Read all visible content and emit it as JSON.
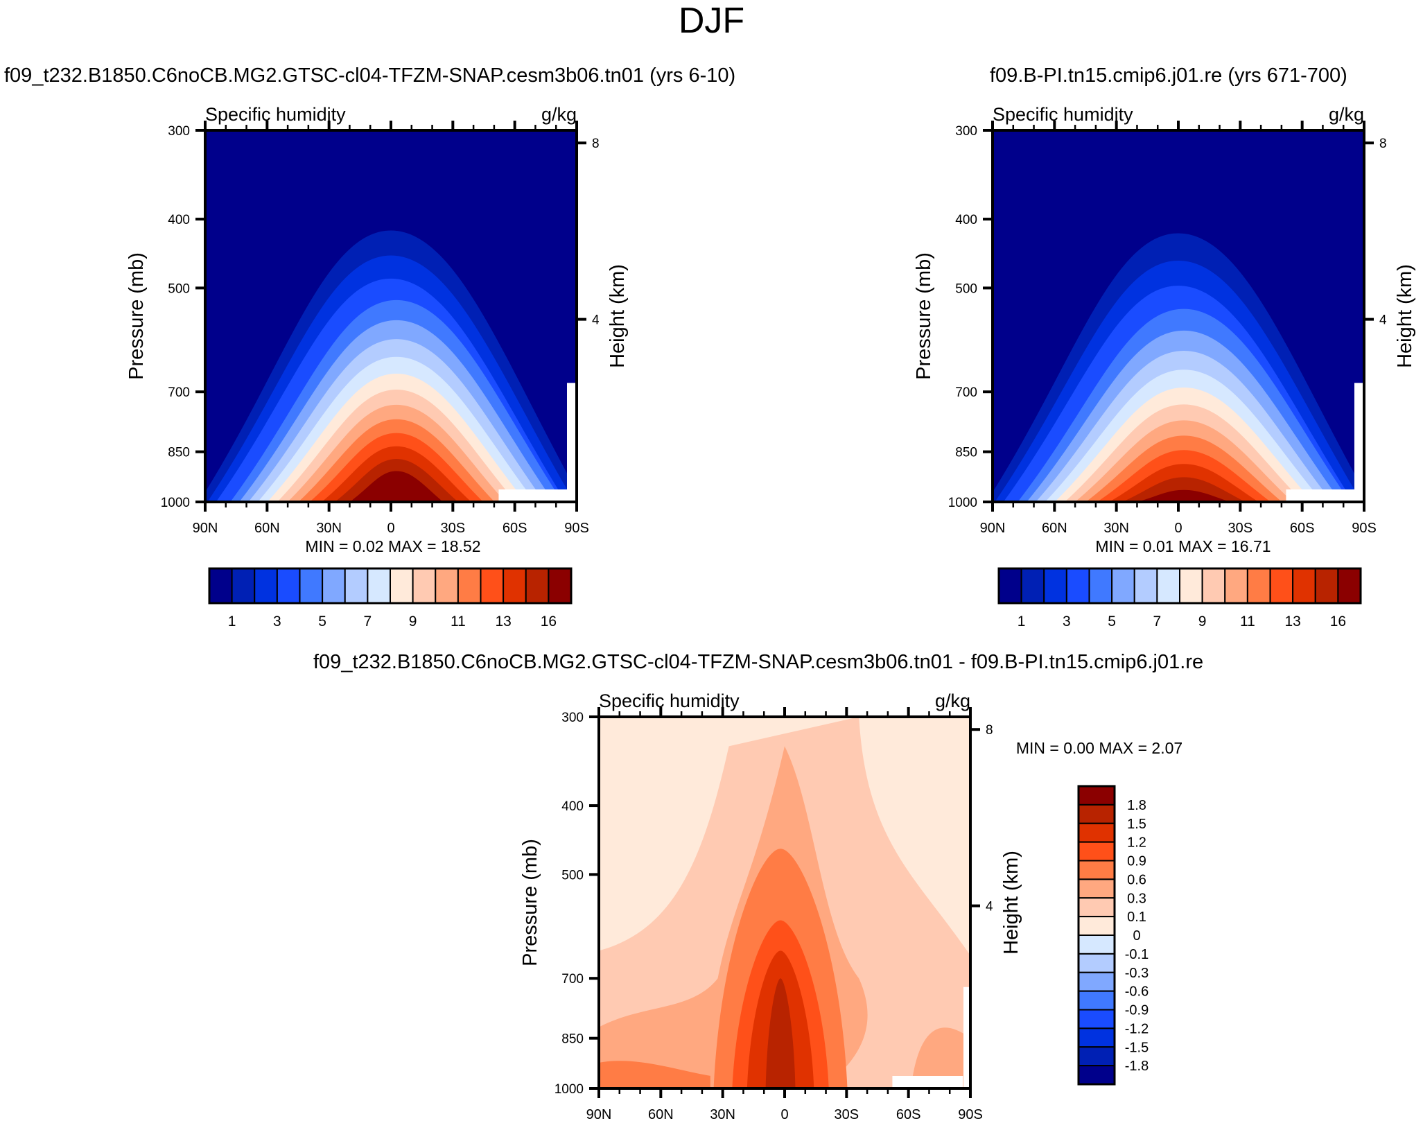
{
  "figure": {
    "title": "DJF",
    "diff_title": "f09_t232.B1850.C6noCB.MG2.GTSC-cl04-TFZM-SNAP.cesm3b06.tn01 - f09.B-PI.tn15.cmip6.j01.re"
  },
  "chart_data": [
    {
      "type": "heatmap",
      "panel": "test",
      "title": "f09_t232.B1850.C6noCB.MG2.GTSC-cl04-TFZM-SNAP.cesm3b06.tn01 (yrs 6-10)",
      "left_string": "Specific humidity",
      "right_string": "g/kg",
      "xlabel": "",
      "ylabel": "Pressure (mb)",
      "y2label": "Height (km)",
      "x_ticks": [
        "90N",
        "60N",
        "30N",
        "0",
        "30S",
        "60S",
        "90S"
      ],
      "x_range": [
        90,
        -90
      ],
      "y_ticks": [
        300,
        400,
        500,
        700,
        850,
        1000
      ],
      "y_range": [
        300,
        1000
      ],
      "y2_ticks": [
        8,
        4
      ],
      "stats": "MIN =   0.02  MAX =  18.52",
      "min": 0.02,
      "max": 18.52,
      "peak_lat": 0,
      "levels": [
        1,
        2,
        3,
        4,
        5,
        6,
        7,
        8,
        9,
        10,
        11,
        12,
        13,
        14,
        16
      ],
      "colorbar_labels": [
        "1",
        "3",
        "5",
        "7",
        "9",
        "11",
        "13",
        "16"
      ],
      "colors": [
        "#00008b",
        "#0020b4",
        "#0032e0",
        "#1a4cff",
        "#4079ff",
        "#80a8ff",
        "#b3ccff",
        "#d6e8ff",
        "#ffeada",
        "#ffcab2",
        "#ffa880",
        "#ff7c45",
        "#ff5019",
        "#e03200",
        "#b82300",
        "#8b0000"
      ]
    },
    {
      "type": "heatmap",
      "panel": "control",
      "title": "f09.B-PI.tn15.cmip6.j01.re (yrs 671-700)",
      "left_string": "Specific humidity",
      "right_string": "g/kg",
      "xlabel": "",
      "ylabel": "Pressure (mb)",
      "y2label": "Height (km)",
      "x_ticks": [
        "90N",
        "60N",
        "30N",
        "0",
        "30S",
        "60S",
        "90S"
      ],
      "x_range": [
        90,
        -90
      ],
      "y_ticks": [
        300,
        400,
        500,
        700,
        850,
        1000
      ],
      "y_range": [
        300,
        1000
      ],
      "y2_ticks": [
        8,
        4
      ],
      "stats": "MIN =   0.01  MAX =  16.71",
      "min": 0.01,
      "max": 16.71,
      "peak_lat": 0,
      "levels": [
        1,
        2,
        3,
        4,
        5,
        6,
        7,
        8,
        9,
        10,
        11,
        12,
        13,
        14,
        16
      ],
      "colorbar_labels": [
        "1",
        "3",
        "5",
        "7",
        "9",
        "11",
        "13",
        "16"
      ],
      "colors": [
        "#00008b",
        "#0020b4",
        "#0032e0",
        "#1a4cff",
        "#4079ff",
        "#80a8ff",
        "#b3ccff",
        "#d6e8ff",
        "#ffeada",
        "#ffcab2",
        "#ffa880",
        "#ff7c45",
        "#ff5019",
        "#e03200",
        "#b82300",
        "#8b0000"
      ]
    },
    {
      "type": "heatmap",
      "panel": "difference",
      "title": "f09_t232.B1850.C6noCB.MG2.GTSC-cl04-TFZM-SNAP.cesm3b06.tn01 - f09.B-PI.tn15.cmip6.j01.re",
      "left_string": "Specific humidity",
      "right_string": "g/kg",
      "xlabel": "",
      "ylabel": "Pressure (mb)",
      "y2label": "Height (km)",
      "x_ticks": [
        "90N",
        "60N",
        "30N",
        "0",
        "30S",
        "60S",
        "90S"
      ],
      "x_range": [
        90,
        -90
      ],
      "y_ticks": [
        300,
        400,
        500,
        700,
        850,
        1000
      ],
      "y_range": [
        300,
        1000
      ],
      "y2_ticks": [
        8,
        4
      ],
      "stats": "MIN =   0.00  MAX =   2.07",
      "min": 0.0,
      "max": 2.07,
      "levels": [
        -1.8,
        -1.5,
        -1.2,
        -0.9,
        -0.6,
        -0.3,
        -0.1,
        0,
        0.1,
        0.3,
        0.6,
        0.9,
        1.2,
        1.5,
        1.8
      ],
      "colorbar_labels": [
        "1.8",
        "1.5",
        "1.2",
        "0.9",
        "0.6",
        "0.3",
        "0.1",
        "0",
        "-0.1",
        "-0.3",
        "-0.6",
        "-0.9",
        "-1.2",
        "-1.5",
        "-1.8"
      ],
      "colors": [
        "#8b0000",
        "#b82300",
        "#e03200",
        "#ff5019",
        "#ff7c45",
        "#ffa880",
        "#ffcab2",
        "#ffeada",
        "#d6e8ff",
        "#b3ccff",
        "#80a8ff",
        "#4079ff",
        "#1a4cff",
        "#0032e0",
        "#0020b4",
        "#00008b"
      ]
    }
  ]
}
